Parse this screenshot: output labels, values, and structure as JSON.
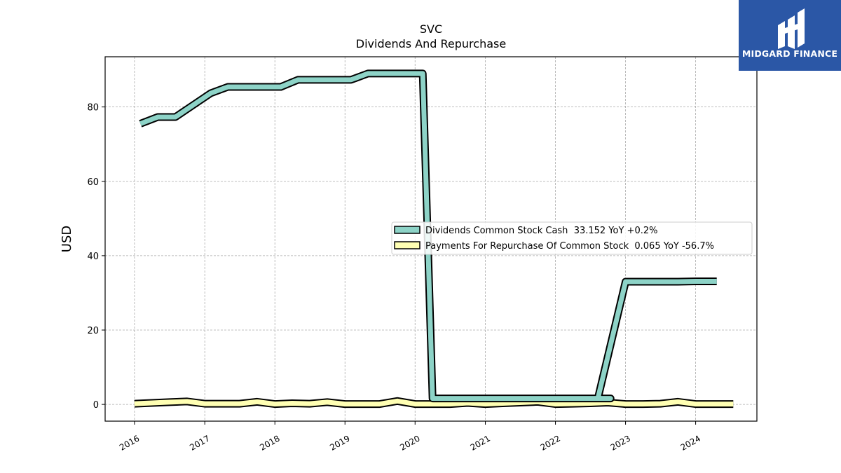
{
  "chart_data": {
    "type": "line",
    "title": "SVC",
    "subtitle": "Dividends And Repurchase",
    "ylabel": "USD",
    "xlabel": "",
    "ylim": [
      -4.5,
      93.5
    ],
    "xlim": [
      "2015-08-01",
      "2024-11-15"
    ],
    "yticks": [
      0,
      20,
      40,
      60,
      80
    ],
    "xticks": [
      "2016",
      "2017",
      "2018",
      "2019",
      "2020",
      "2021",
      "2022",
      "2023",
      "2024"
    ],
    "grid": true,
    "legend_position": "center-right",
    "series": [
      {
        "name": "Dividends Common Stock Cash  33.152 YoY +0.2%",
        "color": "#8dd3c7",
        "points": [
          [
            "2016-02-01",
            75.5
          ],
          [
            "2016-05-01",
            77.3
          ],
          [
            "2016-08-01",
            77.3
          ],
          [
            "2016-11-01",
            80.5
          ],
          [
            "2017-02-01",
            83.7
          ],
          [
            "2017-05-01",
            85.4
          ],
          [
            "2017-08-01",
            85.4
          ],
          [
            "2017-11-01",
            85.4
          ],
          [
            "2018-02-01",
            85.4
          ],
          [
            "2018-05-01",
            87.3
          ],
          [
            "2018-08-01",
            87.3
          ],
          [
            "2018-11-01",
            87.3
          ],
          [
            "2019-02-01",
            87.3
          ],
          [
            "2019-05-01",
            89.0
          ],
          [
            "2019-08-01",
            89.0
          ],
          [
            "2019-11-01",
            89.0
          ],
          [
            "2020-02-10",
            89.0
          ],
          [
            "2020-04-01",
            1.6
          ],
          [
            "2020-08-01",
            1.6
          ],
          [
            "2020-11-01",
            1.6
          ],
          [
            "2021-02-01",
            1.6
          ],
          [
            "2021-05-01",
            1.6
          ],
          [
            "2021-08-01",
            1.6
          ],
          [
            "2021-11-01",
            1.6
          ],
          [
            "2022-02-01",
            1.6
          ],
          [
            "2022-05-01",
            1.6
          ],
          [
            "2022-08-01",
            1.6
          ],
          [
            "2022-10-15",
            1.6
          ],
          [
            "2022-08-10",
            1.6
          ],
          [
            "2023-01-01",
            33.0
          ],
          [
            "2023-04-01",
            33.0
          ],
          [
            "2023-07-01",
            33.0
          ],
          [
            "2023-10-01",
            33.0
          ],
          [
            "2024-01-01",
            33.1
          ],
          [
            "2024-04-20",
            33.1
          ]
        ]
      },
      {
        "name": "Payments For Repurchase Of Common Stock  0.065 YoY -56.7%",
        "color": "#ffffb3",
        "points": [
          [
            "2016-01-01",
            0.2
          ],
          [
            "2016-04-01",
            0.4
          ],
          [
            "2016-07-01",
            0.6
          ],
          [
            "2016-10-01",
            0.8
          ],
          [
            "2017-01-01",
            0.2
          ],
          [
            "2017-04-01",
            0.2
          ],
          [
            "2017-07-01",
            0.2
          ],
          [
            "2017-10-01",
            0.7
          ],
          [
            "2018-01-01",
            0.1
          ],
          [
            "2018-04-01",
            0.3
          ],
          [
            "2018-07-01",
            0.2
          ],
          [
            "2018-10-01",
            0.6
          ],
          [
            "2019-01-01",
            0.1
          ],
          [
            "2019-04-01",
            0.1
          ],
          [
            "2019-07-01",
            0.1
          ],
          [
            "2019-10-01",
            0.9
          ],
          [
            "2020-01-01",
            0.1
          ],
          [
            "2020-04-01",
            0.1
          ],
          [
            "2020-07-01",
            0.1
          ],
          [
            "2020-10-01",
            0.4
          ],
          [
            "2021-01-01",
            0.1
          ],
          [
            "2021-04-01",
            0.3
          ],
          [
            "2021-07-01",
            0.5
          ],
          [
            "2021-10-01",
            0.7
          ],
          [
            "2022-01-01",
            0.1
          ],
          [
            "2022-04-01",
            0.2
          ],
          [
            "2022-07-01",
            0.3
          ],
          [
            "2022-10-01",
            0.5
          ],
          [
            "2023-01-01",
            0.1
          ],
          [
            "2023-04-01",
            0.1
          ],
          [
            "2023-07-01",
            0.2
          ],
          [
            "2023-10-01",
            0.7
          ],
          [
            "2024-01-01",
            0.1
          ],
          [
            "2024-04-01",
            0.1
          ],
          [
            "2024-07-15",
            0.1
          ]
        ]
      }
    ]
  },
  "logo": {
    "text": "MIDGARD FINANCE",
    "background": "#2b57a6"
  }
}
